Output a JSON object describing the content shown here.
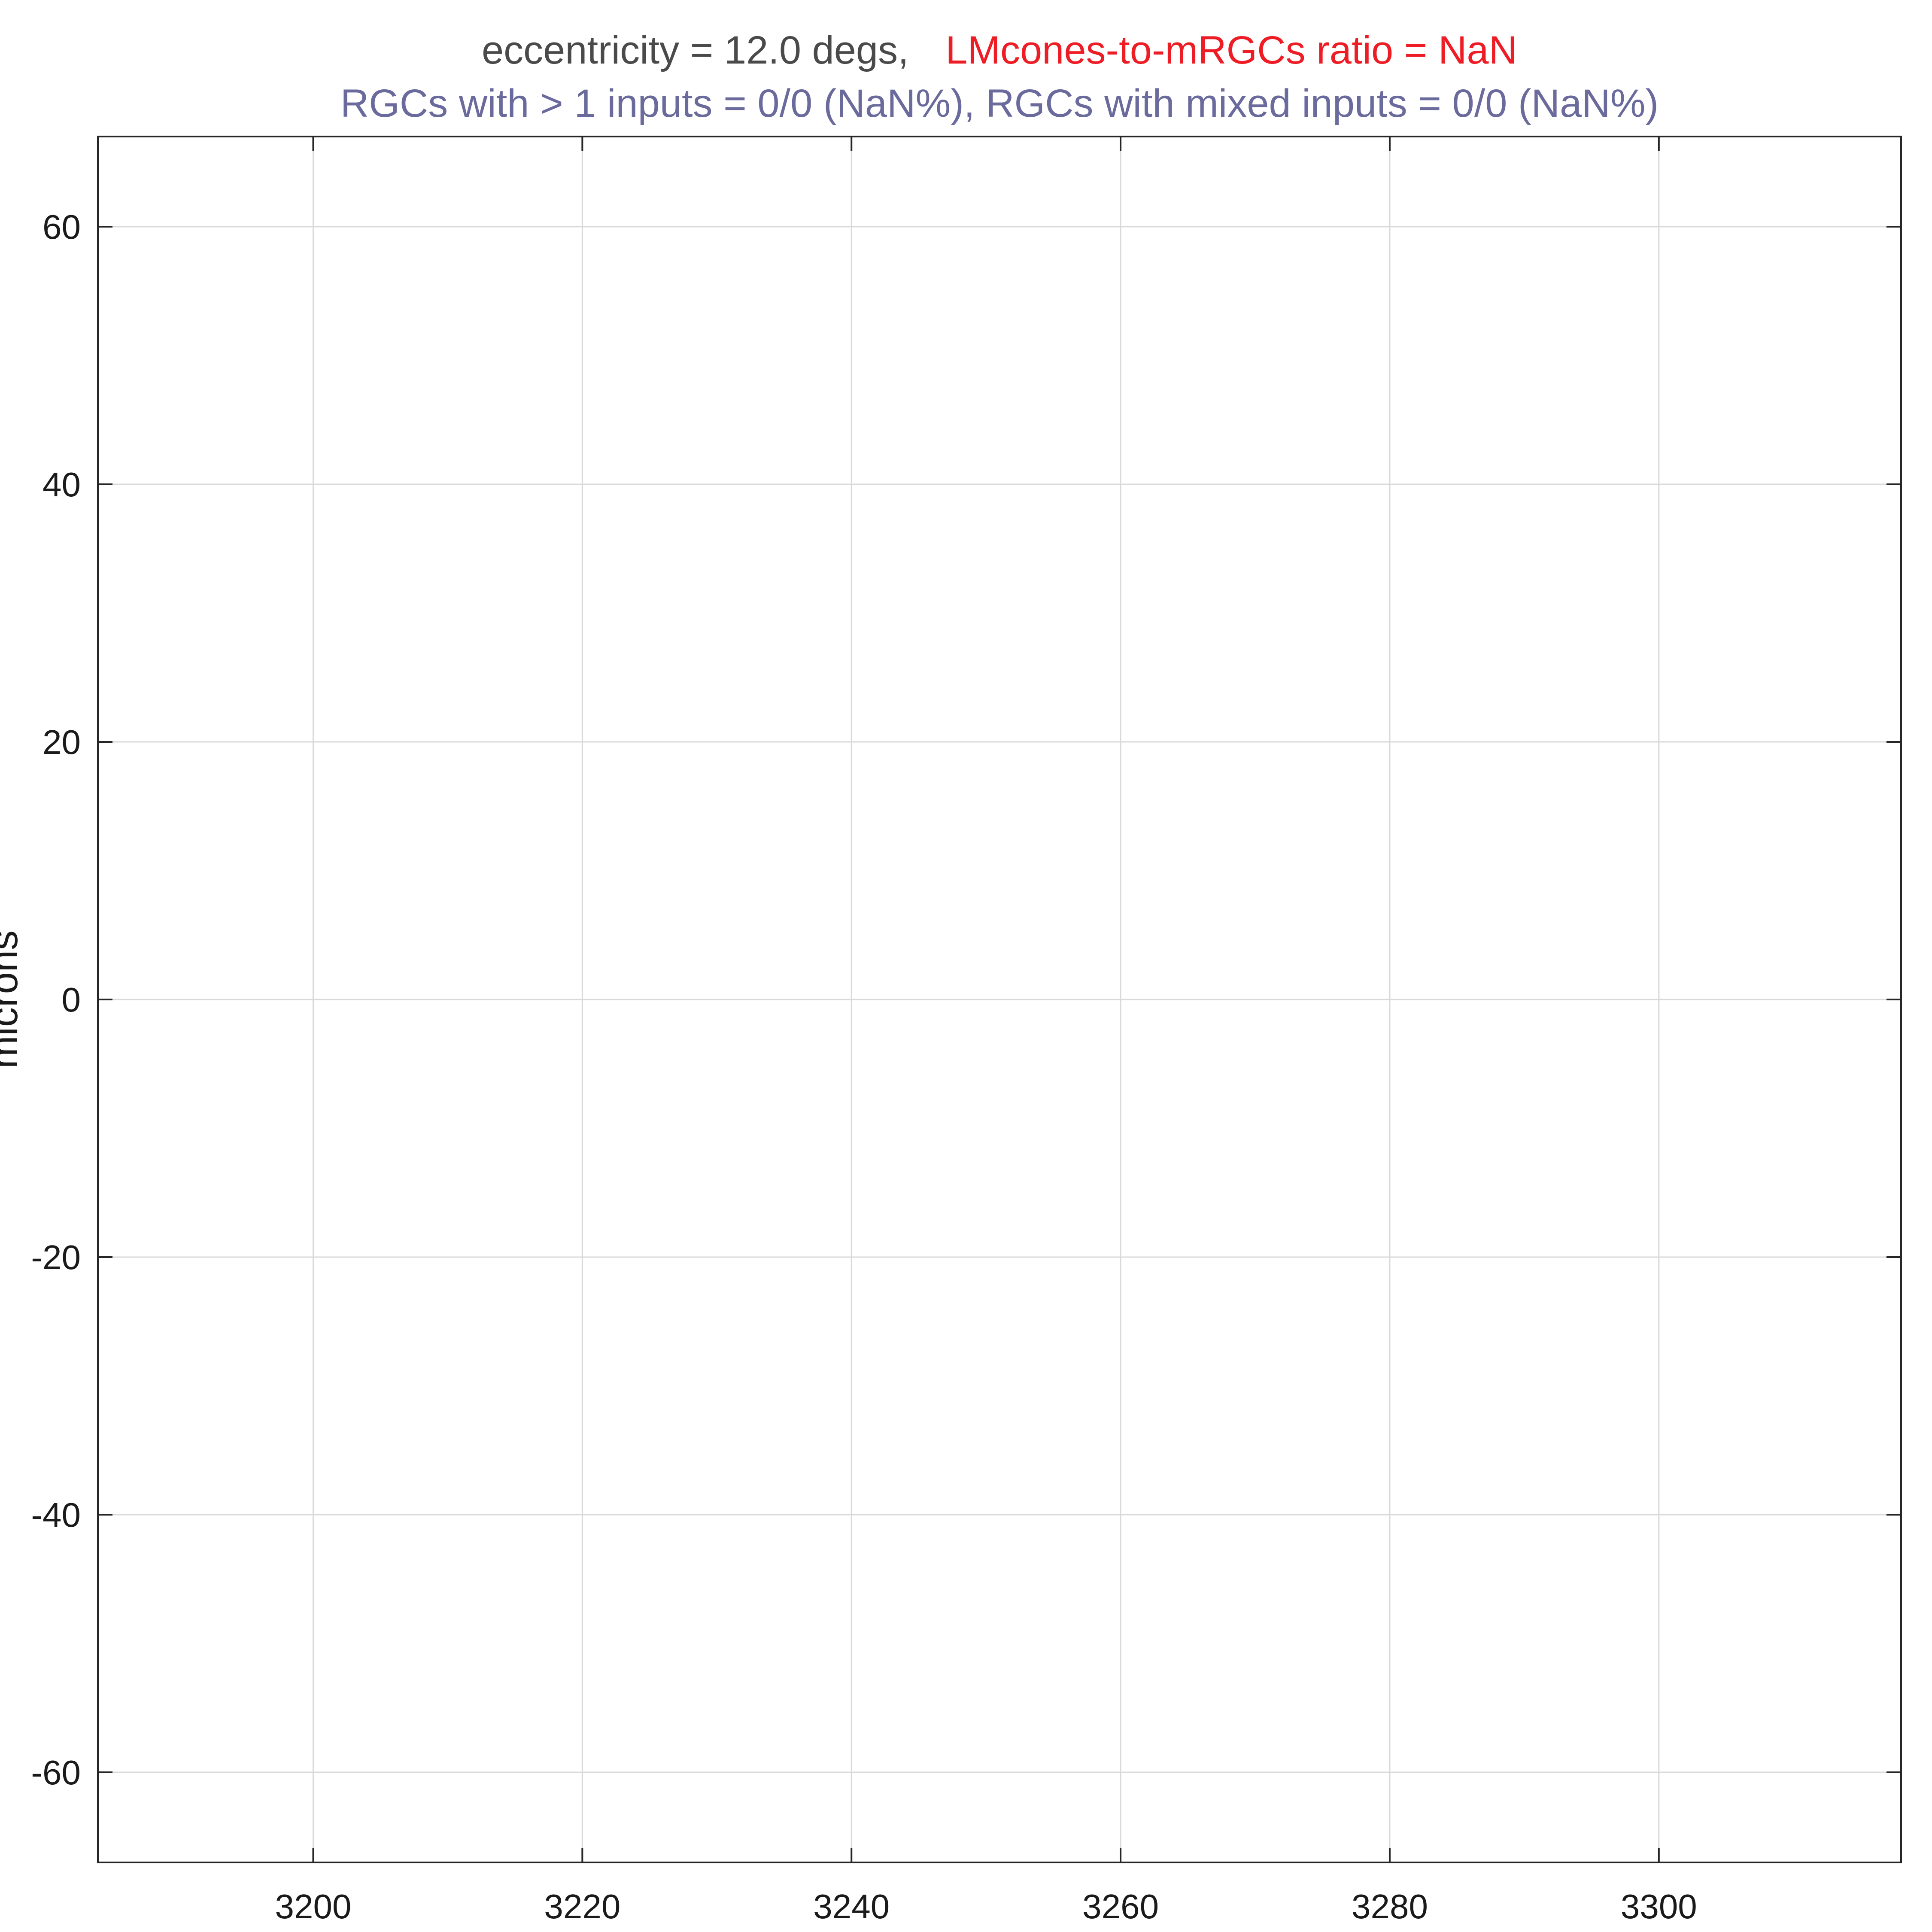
{
  "chart_data": {
    "type": "scatter",
    "title_line1": {
      "part1": "eccentricity = 12.0 degs,",
      "part1_color": "#4a4a4a",
      "part2": "LMcones-to-mRGCs ratio = NaN",
      "part2_color": "#ee1c25"
    },
    "title_line2": {
      "text": "RGCs with > 1 inputs = 0/0 (NaN%), RGCs with mixed inputs = 0/0 (NaN%)",
      "color": "#6a6a9c"
    },
    "xlabel": "",
    "ylabel": "microns",
    "xlim": [
      3184,
      3318
    ],
    "ylim": [
      -67,
      67
    ],
    "xticks": [
      3200,
      3220,
      3240,
      3260,
      3280,
      3300
    ],
    "yticks": [
      60,
      40,
      20,
      0,
      -20,
      -40,
      -60
    ],
    "xtick_labels": [
      "3200",
      "3220",
      "3240",
      "3260",
      "3280",
      "3300"
    ],
    "ytick_labels": [
      "60",
      "40",
      "20",
      "0",
      "-20",
      "-40",
      "-60"
    ],
    "grid": true,
    "series": []
  }
}
